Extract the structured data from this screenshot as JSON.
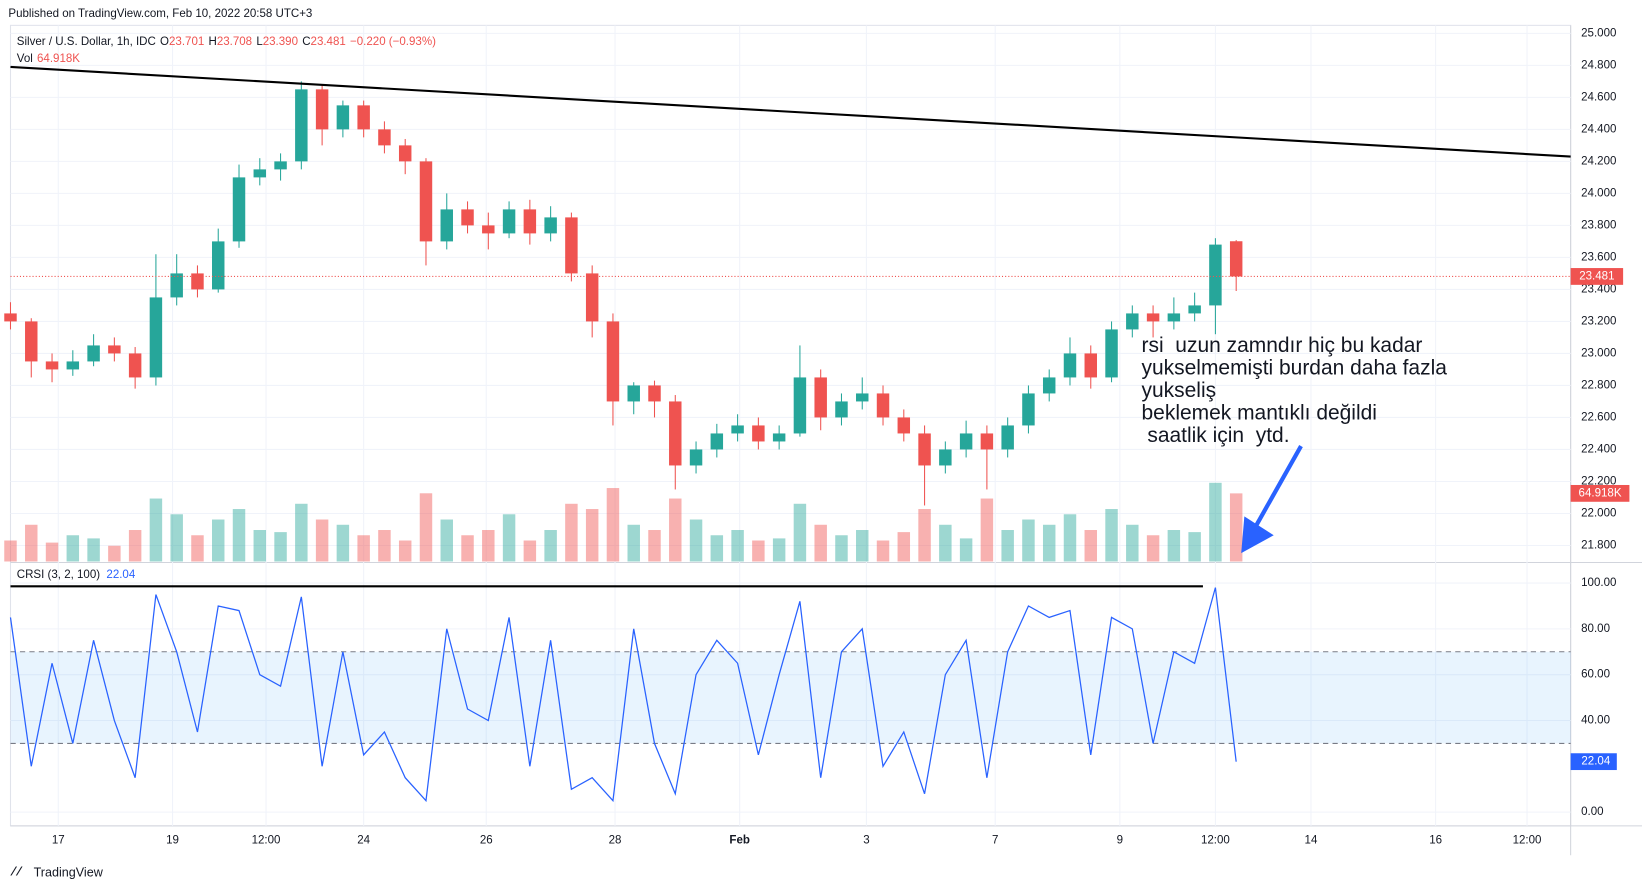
{
  "published": "Published on TradingView.com, Feb 10, 2022 20:58 UTC+3",
  "footer": "TradingView",
  "chart_data": [
    {
      "type": "candlestick",
      "symbol": "Silver / U.S. Dollar, 1h, IDC",
      "header_ohlc": [
        [
          "O",
          "23.701"
        ],
        [
          "H",
          "23.708"
        ],
        [
          "L",
          "23.390"
        ],
        [
          "C",
          "23.481"
        ]
      ],
      "header_change": "−0.220 (−0.93%)",
      "volume_name": "Vol",
      "last_volume_label": "64.918K",
      "up_color": "#26a69a",
      "down_color": "#ef5350",
      "candles": [
        [
          23.25,
          23.32,
          23.15,
          23.2
        ],
        [
          23.2,
          23.22,
          22.85,
          22.95
        ],
        [
          22.95,
          23.0,
          22.82,
          22.9
        ],
        [
          22.9,
          23.02,
          22.86,
          22.95
        ],
        [
          22.95,
          23.12,
          22.92,
          23.05
        ],
        [
          23.05,
          23.1,
          22.95,
          23.0
        ],
        [
          23.0,
          23.04,
          22.78,
          22.85
        ],
        [
          22.85,
          23.62,
          22.8,
          23.35
        ],
        [
          23.35,
          23.62,
          23.3,
          23.5
        ],
        [
          23.5,
          23.55,
          23.35,
          23.4
        ],
        [
          23.4,
          23.78,
          23.38,
          23.7
        ],
        [
          23.7,
          24.18,
          23.66,
          24.1
        ],
        [
          24.1,
          24.22,
          24.05,
          24.15
        ],
        [
          24.15,
          24.25,
          24.08,
          24.2
        ],
        [
          24.2,
          24.7,
          24.15,
          24.65
        ],
        [
          24.65,
          24.68,
          24.3,
          24.4
        ],
        [
          24.4,
          24.58,
          24.35,
          24.55
        ],
        [
          24.55,
          24.58,
          24.35,
          24.4
        ],
        [
          24.4,
          24.45,
          24.25,
          24.3
        ],
        [
          24.3,
          24.34,
          24.12,
          24.2
        ],
        [
          24.2,
          24.22,
          23.55,
          23.7
        ],
        [
          23.7,
          24.0,
          23.65,
          23.9
        ],
        [
          23.9,
          23.95,
          23.75,
          23.8
        ],
        [
          23.8,
          23.88,
          23.65,
          23.75
        ],
        [
          23.75,
          23.95,
          23.72,
          23.9
        ],
        [
          23.9,
          23.96,
          23.68,
          23.75
        ],
        [
          23.75,
          23.92,
          23.7,
          23.85
        ],
        [
          23.85,
          23.88,
          23.45,
          23.5
        ],
        [
          23.5,
          23.55,
          23.1,
          23.2
        ],
        [
          23.2,
          23.25,
          22.55,
          22.7
        ],
        [
          22.7,
          22.82,
          22.62,
          22.8
        ],
        [
          22.8,
          22.83,
          22.6,
          22.7
        ],
        [
          22.7,
          22.74,
          22.15,
          22.3
        ],
        [
          22.3,
          22.45,
          22.25,
          22.4
        ],
        [
          22.4,
          22.56,
          22.35,
          22.5
        ],
        [
          22.5,
          22.62,
          22.45,
          22.55
        ],
        [
          22.55,
          22.6,
          22.4,
          22.45
        ],
        [
          22.45,
          22.55,
          22.4,
          22.5
        ],
        [
          22.5,
          23.05,
          22.48,
          22.85
        ],
        [
          22.85,
          22.9,
          22.52,
          22.6
        ],
        [
          22.6,
          22.75,
          22.55,
          22.7
        ],
        [
          22.7,
          22.85,
          22.65,
          22.75
        ],
        [
          22.75,
          22.8,
          22.55,
          22.6
        ],
        [
          22.6,
          22.65,
          22.45,
          22.5
        ],
        [
          22.5,
          22.55,
          22.05,
          22.3
        ],
        [
          22.3,
          22.45,
          22.25,
          22.4
        ],
        [
          22.4,
          22.58,
          22.35,
          22.5
        ],
        [
          22.5,
          22.55,
          22.15,
          22.4
        ],
        [
          22.4,
          22.6,
          22.35,
          22.55
        ],
        [
          22.55,
          22.8,
          22.5,
          22.75
        ],
        [
          22.75,
          22.9,
          22.7,
          22.85
        ],
        [
          22.85,
          23.1,
          22.8,
          23.0
        ],
        [
          23.0,
          23.05,
          22.78,
          22.85
        ],
        [
          22.85,
          23.2,
          22.82,
          23.15
        ],
        [
          23.15,
          23.3,
          23.1,
          23.25
        ],
        [
          23.25,
          23.3,
          23.1,
          23.2
        ],
        [
          23.2,
          23.35,
          23.15,
          23.25
        ],
        [
          23.25,
          23.38,
          23.2,
          23.3
        ],
        [
          23.3,
          23.72,
          23.12,
          23.68
        ],
        [
          23.701,
          23.708,
          23.39,
          23.481
        ]
      ],
      "volume": [
        20,
        35,
        18,
        25,
        22,
        15,
        30,
        60,
        45,
        25,
        40,
        50,
        30,
        28,
        55,
        40,
        35,
        25,
        30,
        20,
        65,
        40,
        25,
        30,
        45,
        20,
        30,
        55,
        50,
        70,
        35,
        30,
        60,
        40,
        25,
        30,
        20,
        22,
        55,
        35,
        25,
        30,
        20,
        28,
        50,
        35,
        22,
        60,
        30,
        40,
        35,
        45,
        30,
        50,
        35,
        25,
        30,
        28,
        75,
        64.918
      ],
      "xlim": [
        0,
        75.1
      ],
      "xticks": [
        {
          "value": 2.3,
          "label": "17"
        },
        {
          "value": 7.8,
          "label": "19"
        },
        {
          "value": 12.3,
          "label": "12:00"
        },
        {
          "value": 17.0,
          "label": "24"
        },
        {
          "value": 22.9,
          "label": "26"
        },
        {
          "value": 29.1,
          "label": "28"
        },
        {
          "value": 35.1,
          "label": "Feb"
        },
        {
          "value": 41.2,
          "label": "3"
        },
        {
          "value": 47.4,
          "label": "7"
        },
        {
          "value": 53.4,
          "label": "9"
        },
        {
          "value": 58.0,
          "label": "12:00"
        },
        {
          "value": 62.6,
          "label": "14"
        },
        {
          "value": 68.6,
          "label": "16"
        },
        {
          "value": 73.0,
          "label": "12:00"
        }
      ],
      "ylim": [
        21.7,
        25.05
      ],
      "yticks": [
        {
          "value": 21.8,
          "label": "21.800"
        },
        {
          "value": 22.0,
          "label": "22.000"
        },
        {
          "value": 22.2,
          "label": "22.200"
        },
        {
          "value": 22.4,
          "label": "22.400"
        },
        {
          "value": 22.6,
          "label": "22.600"
        },
        {
          "value": 22.8,
          "label": "22.800"
        },
        {
          "value": 23.0,
          "label": "23.000"
        },
        {
          "value": 23.2,
          "label": "23.200"
        },
        {
          "value": 23.4,
          "label": "23.400"
        },
        {
          "value": 23.6,
          "label": "23.600"
        },
        {
          "value": 23.8,
          "label": "23.800"
        },
        {
          "value": 24.0,
          "label": "24.000"
        },
        {
          "value": 24.2,
          "label": "24.200"
        },
        {
          "value": 24.4,
          "label": "24.400"
        },
        {
          "value": 24.6,
          "label": "24.600"
        },
        {
          "value": 24.8,
          "label": "24.800"
        },
        {
          "value": 25.0,
          "label": "25.000"
        }
      ],
      "grid": true,
      "trendline": {
        "x": [
          0,
          75.1
        ],
        "y": [
          24.79,
          24.23
        ]
      },
      "annotation": [
        "rsi  uzun zamndır hiç bu kadar",
        "yukselmemişti burdan daha fazla",
        "yukseliş",
        "beklemek mantıklı değildi",
        " saatlik için  ytd."
      ]
    },
    {
      "type": "line",
      "name": "CRSI (3, 2, 100)",
      "color": "#2962ff",
      "values": [
        85,
        20,
        65,
        30,
        75,
        40,
        15,
        95,
        70,
        35,
        90,
        88,
        60,
        55,
        94,
        20,
        70,
        25,
        35,
        15,
        5,
        80,
        45,
        40,
        85,
        20,
        75,
        10,
        15,
        5,
        80,
        30,
        8,
        60,
        75,
        65,
        25,
        60,
        92,
        15,
        70,
        80,
        20,
        35,
        8,
        60,
        75,
        15,
        70,
        90,
        85,
        88,
        25,
        85,
        80,
        30,
        70,
        65,
        98,
        22.04
      ],
      "bands": [
        30,
        70
      ],
      "ylim": [
        -6,
        108.5
      ],
      "yticks": [
        {
          "value": 0,
          "label": "0.00"
        },
        {
          "value": 40,
          "label": "40.00"
        },
        {
          "value": 60,
          "label": "60.00"
        },
        {
          "value": 80,
          "label": "80.00"
        },
        {
          "value": 100,
          "label": "100.00"
        }
      ],
      "hline": {
        "x": [
          0,
          57.4
        ],
        "y": 98.6
      }
    }
  ]
}
